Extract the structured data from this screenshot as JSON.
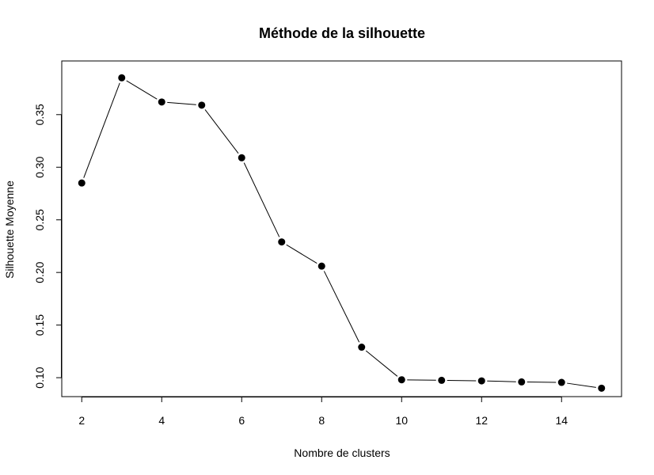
{
  "chart_data": {
    "type": "line",
    "title": "Méthode de la silhouette",
    "xlabel": "Nombre de clusters",
    "ylabel": "Silhouette Moyenne",
    "x": [
      2,
      3,
      4,
      5,
      6,
      7,
      8,
      9,
      10,
      11,
      12,
      13,
      14,
      15
    ],
    "y": [
      0.285,
      0.385,
      0.362,
      0.359,
      0.309,
      0.229,
      0.206,
      0.129,
      0.098,
      0.0975,
      0.097,
      0.096,
      0.0955,
      0.09
    ],
    "xlim": [
      1.5,
      15.5
    ],
    "ylim": [
      0.082,
      0.401
    ],
    "xticks": [
      2,
      4,
      6,
      8,
      10,
      12,
      14
    ],
    "xtick_labels": [
      "2",
      "4",
      "6",
      "8",
      "10",
      "12",
      "14"
    ],
    "yticks": [
      0.1,
      0.15,
      0.2,
      0.25,
      0.3,
      0.35
    ],
    "ytick_labels": [
      "0.10",
      "0.15",
      "0.20",
      "0.25",
      "0.30",
      "0.35"
    ],
    "grid": false,
    "marker": "filled-circle",
    "line_color": "#000000",
    "marker_color": "#000000"
  }
}
